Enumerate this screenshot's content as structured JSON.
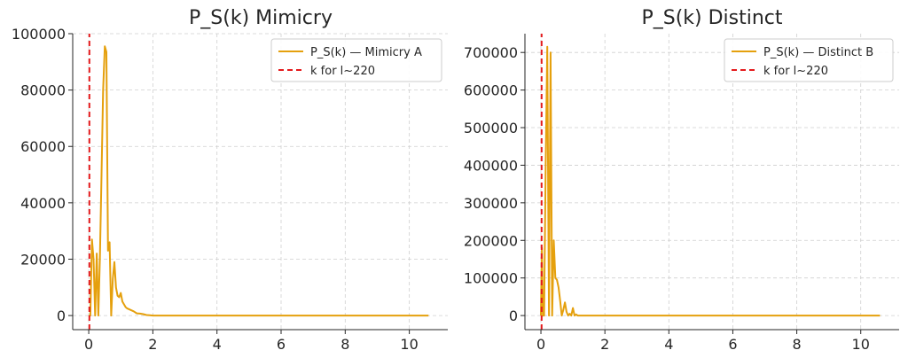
{
  "chart_data": [
    {
      "type": "line",
      "title": "P_S(k) Mimicry",
      "xlabel": "",
      "ylabel": "",
      "xlim": [
        -0.5,
        11.2
      ],
      "ylim": [
        -5000,
        100000
      ],
      "xticks": [
        0,
        2,
        4,
        6,
        8,
        10
      ],
      "xtick_labels": [
        "0",
        "2",
        "4",
        "6",
        "8",
        "10"
      ],
      "yticks": [
        0,
        20000,
        40000,
        60000,
        80000,
        100000
      ],
      "ytick_labels": [
        "0",
        "20000",
        "40000",
        "60000",
        "80000",
        "100000"
      ],
      "grid": true,
      "legend_position": "top-right",
      "series": [
        {
          "name": "P_S(k) — Mimicry A",
          "color": "#e5a00d",
          "style": "solid",
          "x": [
            0.0,
            0.05,
            0.1,
            0.15,
            0.2,
            0.25,
            0.3,
            0.35,
            0.4,
            0.45,
            0.5,
            0.55,
            0.6,
            0.65,
            0.7,
            0.75,
            0.8,
            0.85,
            0.9,
            0.95,
            1.0,
            1.05,
            1.1,
            1.15,
            1.2,
            1.3,
            1.4,
            1.5,
            1.6,
            1.7,
            1.8,
            1.9,
            2.0,
            2.2,
            2.5,
            3.0,
            4.0,
            5.0,
            6.0,
            7.0,
            8.0,
            9.0,
            10.0,
            10.6
          ],
          "y": [
            0,
            0,
            27000,
            20000,
            0,
            22000,
            0,
            21000,
            50000,
            80000,
            95500,
            93500,
            23000,
            26000,
            0,
            13000,
            19000,
            10000,
            7000,
            6500,
            8000,
            5000,
            4000,
            3000,
            2500,
            2000,
            1500,
            800,
            700,
            500,
            200,
            100,
            0,
            0,
            0,
            0,
            0,
            0,
            0,
            0,
            0,
            0,
            0,
            0
          ]
        },
        {
          "name": "k for l~220",
          "color": "#e41a1c",
          "style": "dashed",
          "x": [
            0.02,
            0.02
          ],
          "y": [
            -5000,
            100000
          ]
        }
      ]
    },
    {
      "type": "line",
      "title": "P_S(k) Distinct",
      "xlabel": "",
      "ylabel": "",
      "xlim": [
        -0.5,
        11.2
      ],
      "ylim": [
        -37500,
        750000
      ],
      "xticks": [
        0,
        2,
        4,
        6,
        8,
        10
      ],
      "xtick_labels": [
        "0",
        "2",
        "4",
        "6",
        "8",
        "10"
      ],
      "yticks": [
        0,
        100000,
        200000,
        300000,
        400000,
        500000,
        600000,
        700000
      ],
      "ytick_labels": [
        "0",
        "100000",
        "200000",
        "300000",
        "400000",
        "500000",
        "600000",
        "700000"
      ],
      "grid": true,
      "legend_position": "top-right",
      "series": [
        {
          "name": "P_S(k) — Distinct B",
          "color": "#e5a00d",
          "style": "solid",
          "x": [
            0.0,
            0.03,
            0.06,
            0.1,
            0.15,
            0.2,
            0.25,
            0.3,
            0.35,
            0.4,
            0.45,
            0.5,
            0.55,
            0.6,
            0.65,
            0.7,
            0.75,
            0.8,
            0.85,
            0.9,
            0.95,
            1.0,
            1.05,
            1.1,
            1.15,
            1.2,
            1.3,
            1.4,
            1.5,
            1.6,
            1.8,
            2.0,
            2.5,
            3.0,
            4.0,
            5.0,
            6.0,
            7.0,
            8.0,
            9.0,
            10.0,
            10.6
          ],
          "y": [
            0,
            180000,
            0,
            0,
            400000,
            715000,
            0,
            700000,
            0,
            200000,
            100000,
            95000,
            75000,
            40000,
            0,
            15000,
            35000,
            10000,
            0,
            5000,
            0,
            20000,
            0,
            3000,
            0,
            0,
            0,
            0,
            0,
            0,
            0,
            0,
            0,
            0,
            0,
            0,
            0,
            0,
            0,
            0,
            0,
            0
          ]
        },
        {
          "name": "k for l~220",
          "color": "#e41a1c",
          "style": "dashed",
          "x": [
            0.02,
            0.02
          ],
          "y": [
            -37500,
            750000
          ]
        }
      ]
    }
  ]
}
